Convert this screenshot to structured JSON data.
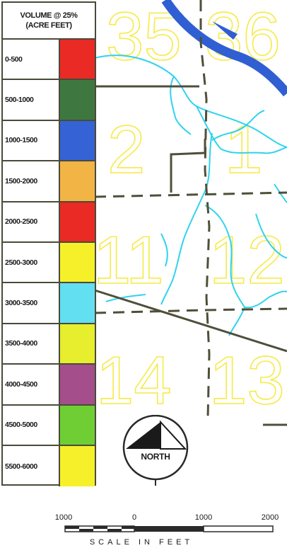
{
  "legend": {
    "title_line1": "VOLUME @ 25%",
    "title_line2": "(ACRE FEET)",
    "items": [
      {
        "label": "0-500",
        "color": "#ea2a25"
      },
      {
        "label": "500-1000",
        "color": "#3e7840"
      },
      {
        "label": "1000-1500",
        "color": "#3562d4"
      },
      {
        "label": "1500-2000",
        "color": "#f2b445"
      },
      {
        "label": "2000-2500",
        "color": "#ea2a25"
      },
      {
        "label": "2500-3000",
        "color": "#f6f02a"
      },
      {
        "label": "3000-3500",
        "color": "#62dff0"
      },
      {
        "label": "3500-4000",
        "color": "#e6ee2e"
      },
      {
        "label": "4000-4500",
        "color": "#a44e8c"
      },
      {
        "label": "4500-5000",
        "color": "#6ece34"
      },
      {
        "label": "5500-6000",
        "color": "#f6f02a"
      }
    ]
  },
  "sections": [
    "35",
    "36",
    "2",
    "1",
    "11",
    "12",
    "14",
    "13"
  ],
  "north_label": "NORTH",
  "scale": {
    "ticks": [
      "1000",
      "0",
      "1000",
      "2000"
    ],
    "caption": "SCALE IN FEET"
  },
  "colors": {
    "section_numbers": "#f6ea4a",
    "streams": "#2fd3ee",
    "river": "#2f5fd2",
    "roads": "#4f4f3a",
    "legend_border": "#4a4a3a"
  }
}
